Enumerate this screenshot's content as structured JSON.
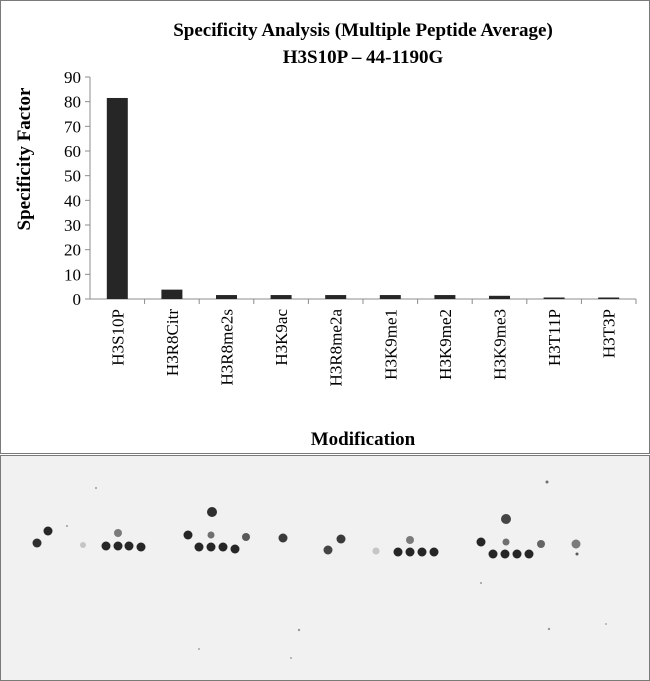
{
  "chart_data": {
    "type": "bar",
    "title": "Specificity Analysis  (Multiple Peptide Average)",
    "subtitle": "H3S10P – 44-1190G",
    "xlabel": "Modification",
    "ylabel": "Specificity Factor",
    "categories": [
      "H3S10P",
      "H3R8Citr",
      "H3R8me2s",
      "H3K9ac",
      "H3R8me2a",
      "H3K9me1",
      "H3K9me2",
      "H3K9me3",
      "H3T11P",
      "H3T3P"
    ],
    "values": [
      81.5,
      3.8,
      1.6,
      1.6,
      1.6,
      1.6,
      1.6,
      1.3,
      0.4,
      0.4
    ],
    "ylim": [
      0,
      90
    ],
    "yticks": [
      "0",
      "10",
      "20",
      "30",
      "40",
      "50",
      "60",
      "70",
      "80",
      "90"
    ],
    "bar_color": "#262626",
    "grid": false,
    "legend": "none"
  },
  "blot": {
    "description_icon": "dot-blot-image",
    "background_color": "#f1f1f1",
    "spot_color": "#1a1a1a"
  }
}
